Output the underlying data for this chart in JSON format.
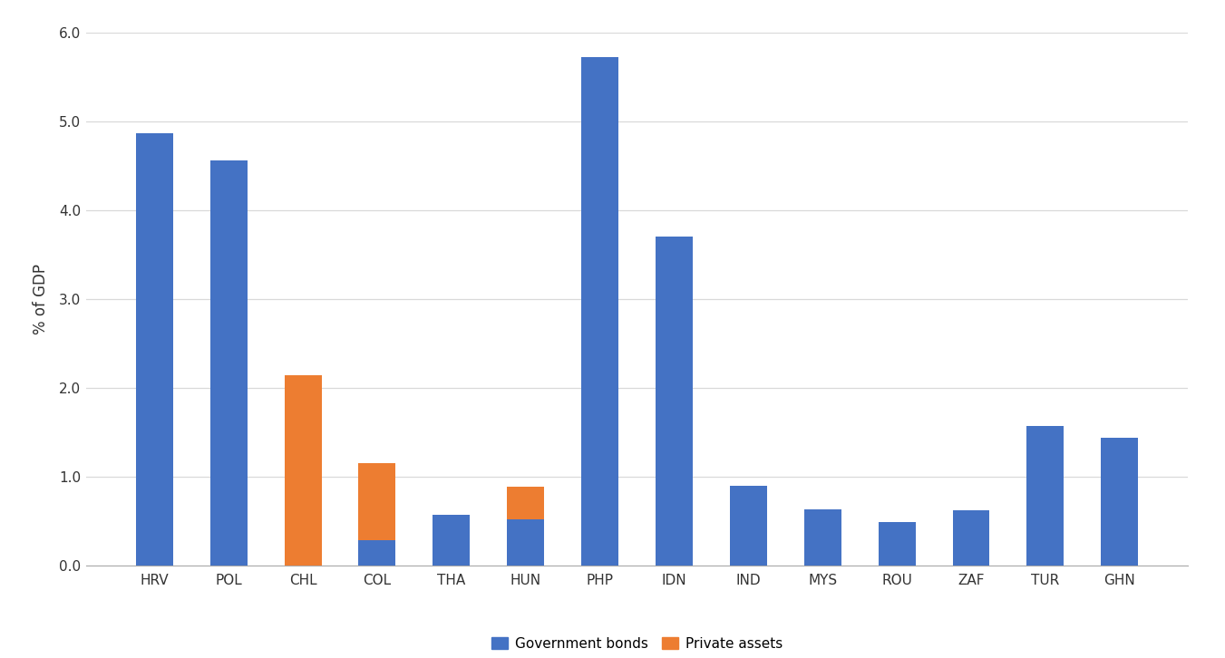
{
  "categories": [
    "HRV",
    "POL",
    "CHL",
    "COL",
    "THA",
    "HUN",
    "PHP",
    "IDN",
    "IND",
    "MYS",
    "ROU",
    "ZAF",
    "TUR",
    "GHN"
  ],
  "gov_bonds": [
    4.87,
    4.56,
    0.0,
    0.29,
    0.57,
    0.52,
    5.73,
    3.71,
    0.9,
    0.64,
    0.49,
    0.63,
    1.58,
    1.44
  ],
  "private_assets": [
    0.0,
    0.0,
    2.15,
    0.87,
    0.0,
    0.37,
    0.0,
    0.0,
    0.0,
    0.0,
    0.0,
    0.0,
    0.0,
    0.0
  ],
  "gov_color": "#4472C4",
  "private_color": "#ED7D31",
  "ylabel": "% of GDP",
  "ylim": [
    0,
    6.0
  ],
  "yticks": [
    0.0,
    1.0,
    2.0,
    3.0,
    4.0,
    5.0,
    6.0
  ],
  "legend_gov": "Government bonds",
  "legend_private": "Private assets",
  "background_color": "#ffffff",
  "grid_color": "#d9d9d9",
  "bar_width": 0.5,
  "tick_fontsize": 11,
  "ylabel_fontsize": 12,
  "legend_fontsize": 11
}
